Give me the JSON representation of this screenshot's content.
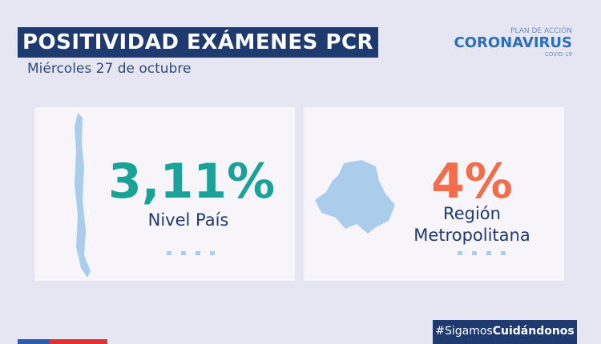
{
  "header": {
    "title": "POSITIVIDAD EXÁMENES PCR",
    "date": "Miércoles 27 de octubre"
  },
  "logo": {
    "plan": "PLAN DE ACCIÓN",
    "name": "CORONAVIRUS",
    "sub": "COVID-19"
  },
  "cards": [
    {
      "value": "3,11%",
      "label": "Nivel País"
    },
    {
      "value": "4%",
      "label": "Región Metropolitana"
    }
  ],
  "hashtag": {
    "prefix": "#Sigamos",
    "bold": "Cuidándonos"
  }
}
